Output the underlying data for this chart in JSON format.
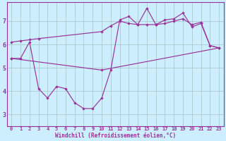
{
  "xlabel": "Windchill (Refroidissement éolien,°C)",
  "bg_color": "#cceeff",
  "grid_color": "#aacccc",
  "line_color": "#993399",
  "xlim": [
    -0.5,
    23.5
  ],
  "ylim": [
    2.5,
    7.8
  ],
  "xticks": [
    0,
    1,
    2,
    3,
    4,
    5,
    6,
    7,
    8,
    9,
    10,
    11,
    12,
    13,
    14,
    15,
    16,
    17,
    18,
    19,
    20,
    21,
    22,
    23
  ],
  "yticks": [
    3,
    4,
    5,
    6,
    7
  ],
  "series1": [
    [
      0,
      5.4
    ],
    [
      1,
      5.4
    ],
    [
      2,
      6.1
    ],
    [
      3,
      4.1
    ],
    [
      4,
      3.7
    ],
    [
      5,
      4.2
    ],
    [
      6,
      4.1
    ],
    [
      7,
      3.5
    ],
    [
      8,
      3.25
    ],
    [
      9,
      3.25
    ],
    [
      10,
      3.7
    ],
    [
      11,
      4.9
    ],
    [
      12,
      7.05
    ],
    [
      13,
      7.2
    ],
    [
      14,
      6.85
    ],
    [
      15,
      7.55
    ],
    [
      16,
      6.85
    ],
    [
      17,
      7.05
    ],
    [
      18,
      7.1
    ],
    [
      19,
      7.35
    ],
    [
      20,
      6.75
    ],
    [
      21,
      6.9
    ],
    [
      22,
      5.95
    ],
    [
      23,
      5.85
    ]
  ],
  "series2": [
    [
      0,
      6.1
    ],
    [
      1,
      6.15
    ],
    [
      2,
      6.2
    ],
    [
      3,
      6.25
    ],
    [
      10,
      6.55
    ],
    [
      11,
      6.8
    ],
    [
      12,
      7.0
    ],
    [
      13,
      6.9
    ],
    [
      14,
      6.85
    ],
    [
      15,
      6.85
    ],
    [
      16,
      6.85
    ],
    [
      17,
      6.9
    ],
    [
      18,
      7.0
    ],
    [
      19,
      7.1
    ],
    [
      20,
      6.85
    ],
    [
      21,
      6.95
    ],
    [
      22,
      5.95
    ],
    [
      23,
      5.85
    ]
  ],
  "series3": [
    [
      0,
      5.4
    ],
    [
      10,
      4.9
    ],
    [
      23,
      5.85
    ]
  ]
}
